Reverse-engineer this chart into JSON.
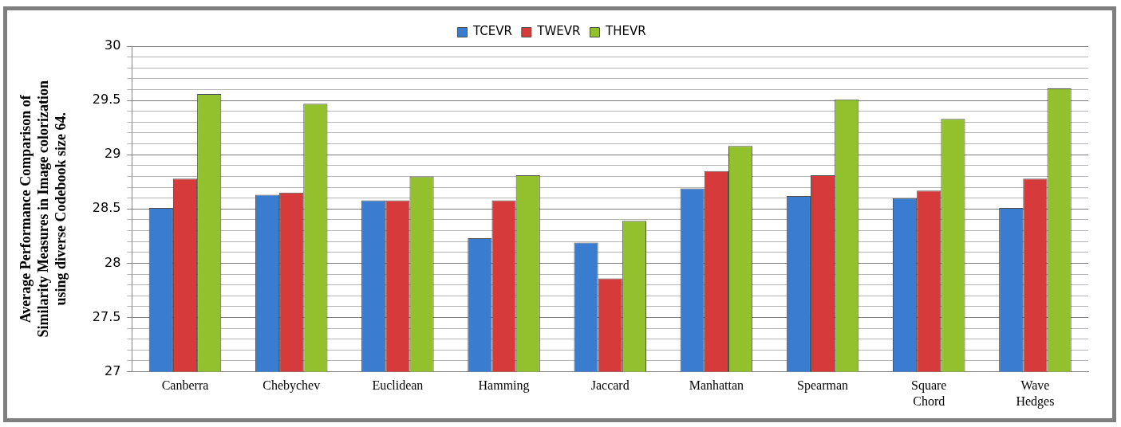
{
  "chart_data": {
    "type": "bar",
    "ylabel": "Average Performance Comparison of Similarity Measures in Image colorization using diverse Codebook size 64.",
    "categories": [
      "Canberra",
      "Chebychev",
      "Euclidean",
      "Hamming",
      "Jaccard",
      "Manhattan",
      "Spearman",
      "Square Chord",
      "Wave Hedges"
    ],
    "series": [
      {
        "name": "TCEVR",
        "color": "#3a7dd0",
        "values": [
          28.51,
          28.63,
          28.58,
          28.23,
          28.19,
          28.69,
          28.62,
          28.6,
          28.51
        ]
      },
      {
        "name": "TWEVR",
        "color": "#d63a3a",
        "values": [
          28.78,
          28.65,
          28.58,
          28.58,
          27.86,
          28.85,
          28.81,
          28.67,
          28.78
        ]
      },
      {
        "name": "THEVR",
        "color": "#93c12e",
        "values": [
          29.56,
          29.47,
          28.8,
          28.81,
          28.39,
          29.08,
          29.51,
          29.33,
          29.61
        ]
      }
    ],
    "ylim": [
      27,
      30
    ],
    "yticks": [
      27,
      {
        "value": 27.1,
        "label": null
      },
      {
        "value": 27.2,
        "label": null
      },
      {
        "value": 27.3,
        "label": null
      },
      {
        "value": 27.4,
        "label": null
      },
      27.5,
      {
        "value": 27.6,
        "label": null
      },
      {
        "value": 27.7,
        "label": null
      },
      {
        "value": 27.8,
        "label": null
      },
      {
        "value": 27.9,
        "label": null
      },
      28,
      {
        "value": 28.1,
        "label": null
      },
      {
        "value": 28.2,
        "label": null
      },
      {
        "value": 28.3,
        "label": null
      },
      {
        "value": 28.4,
        "label": null
      },
      28.5,
      {
        "value": 28.6,
        "label": null
      },
      {
        "value": 28.7,
        "label": null
      },
      {
        "value": 28.8,
        "label": null
      },
      {
        "value": 28.9,
        "label": null
      },
      29,
      {
        "value": 29.1,
        "label": null
      },
      {
        "value": 29.2,
        "label": null
      },
      {
        "value": 29.3,
        "label": null
      },
      {
        "value": 29.4,
        "label": null
      },
      29.5,
      {
        "value": 29.6,
        "label": null
      },
      {
        "value": 29.7,
        "label": null
      },
      {
        "value": 29.8,
        "label": null
      },
      {
        "value": 29.9,
        "label": null
      },
      30
    ],
    "grid": "y",
    "legend": "top"
  }
}
